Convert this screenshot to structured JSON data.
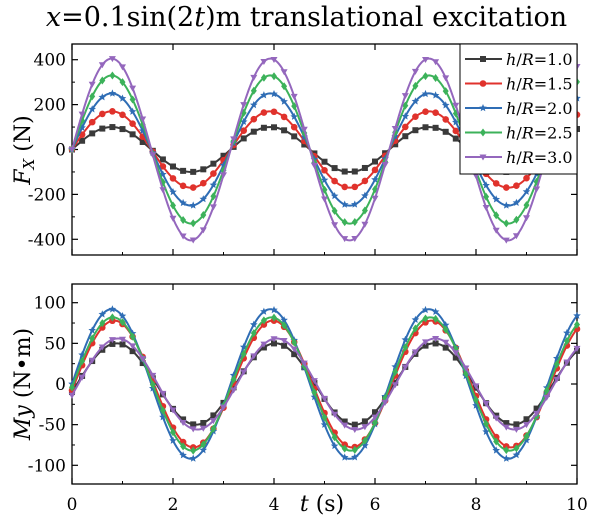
{
  "title": {
    "var_x": "x",
    "expr_a": "=0.1sin(2",
    "var_t": "t",
    "expr_b": ")m translational excitation"
  },
  "chart_data": [
    {
      "type": "line",
      "panel": "top",
      "ylabel_var": "F",
      "ylabel_sub": "X",
      "ylabel_unit": "(N)",
      "xlim": [
        0,
        10
      ],
      "ylim": [
        -470,
        470
      ],
      "yticks": [
        -400,
        -200,
        0,
        200,
        400
      ],
      "ytick_labels": [
        "-400",
        "-200",
        "0",
        "200",
        "400"
      ],
      "grid": false,
      "legend_placement": "top-right",
      "amplitude_unit_note": "",
      "series": [
        {
          "name": "h/R=1.0",
          "legend_var": "h",
          "legend_mid": "/",
          "legend_var2": "R",
          "legend_val": "=1.0",
          "color": "#3a3a3a",
          "marker": "square",
          "amplitude": 100,
          "phase": 0
        },
        {
          "name": "h/R=1.5",
          "legend_var": "h",
          "legend_mid": "/",
          "legend_var2": "R",
          "legend_val": "=1.5",
          "color": "#e0322c",
          "marker": "circle",
          "amplitude": 170,
          "phase": 0
        },
        {
          "name": "h/R=2.0",
          "legend_var": "h",
          "legend_mid": "/",
          "legend_var2": "R",
          "legend_val": "=2.0",
          "color": "#2f6db5",
          "marker": "star",
          "amplitude": 250,
          "phase": 0
        },
        {
          "name": "h/R=2.5",
          "legend_var": "h",
          "legend_mid": "/",
          "legend_var2": "R",
          "legend_val": "=2.5",
          "color": "#3cb25a",
          "marker": "diamond",
          "amplitude": 330,
          "phase": 0
        },
        {
          "name": "h/R=3.0",
          "legend_var": "h",
          "legend_mid": "/",
          "legend_var2": "R",
          "legend_val": "=3.0",
          "color": "#9467bd",
          "marker": "triangle-down",
          "amplitude": 405,
          "phase": 0
        }
      ]
    },
    {
      "type": "line",
      "panel": "bottom",
      "ylabel_var": "My",
      "ylabel_unit": "(N•m)",
      "xlabel_var": "t",
      "xlabel_unit": "(s)",
      "xlim": [
        0,
        10
      ],
      "ylim": [
        -123,
        123
      ],
      "xticks": [
        0,
        2,
        4,
        6,
        8,
        10
      ],
      "xtick_labels": [
        "0",
        "2",
        "4",
        "6",
        "8",
        "10"
      ],
      "yticks": [
        -100,
        -50,
        0,
        50,
        100
      ],
      "ytick_labels": [
        "-100",
        "-50",
        "0",
        "50",
        "100"
      ],
      "grid": false,
      "series": [
        {
          "name": "h/R=1.0",
          "color": "#3a3a3a",
          "marker": "square",
          "amplitude": 50,
          "phase": 0.2
        },
        {
          "name": "h/R=1.5",
          "color": "#e0322c",
          "marker": "circle",
          "amplitude": 78,
          "phase": 0.1
        },
        {
          "name": "h/R=2.0",
          "color": "#2f6db5",
          "marker": "star",
          "amplitude": 92,
          "phase": 0
        },
        {
          "name": "h/R=2.5",
          "color": "#3cb25a",
          "marker": "diamond",
          "amplitude": 82,
          "phase": 0.05
        },
        {
          "name": "h/R=3.0",
          "color": "#9467bd",
          "marker": "triangle-down",
          "amplitude": 56,
          "phase": 0.25
        }
      ]
    }
  ]
}
